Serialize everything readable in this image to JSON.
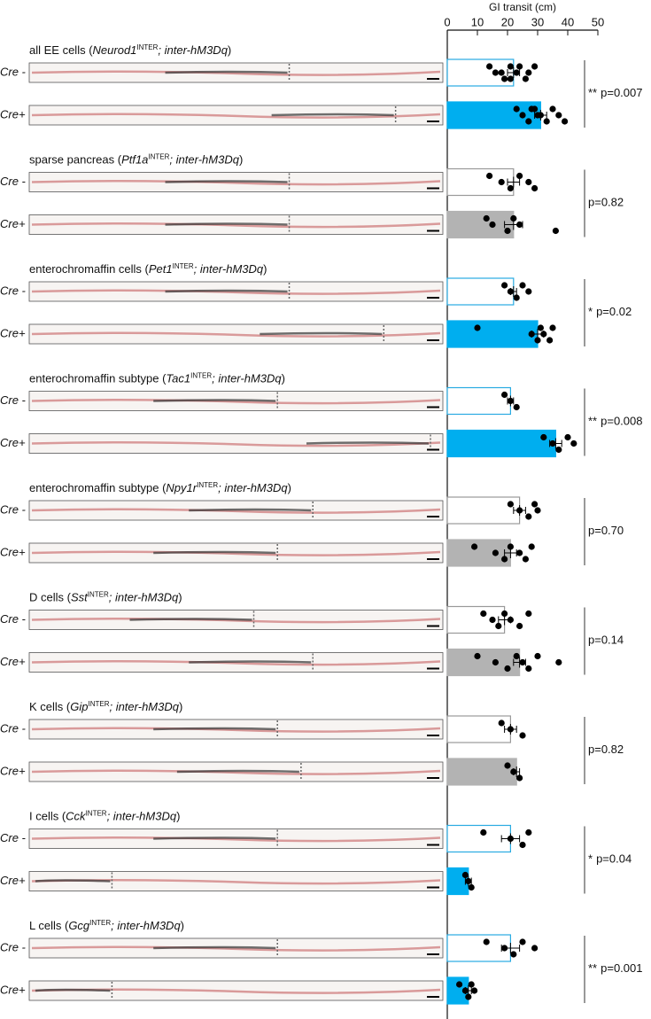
{
  "chart_data": {
    "type": "bar",
    "orientation": "horizontal",
    "x_label": "GI transit (cm)",
    "xlim": [
      0,
      50
    ],
    "xticks": [
      0,
      10,
      20,
      30,
      40,
      50
    ],
    "groups": [
      {
        "title": [
          {
            "text": "all EE cells ("
          },
          {
            "text": "Neurod1",
            "style": "i"
          },
          {
            "text": "INTER",
            "style": "sup"
          },
          {
            "text": "; inter-hM3Dq",
            "style": "i"
          },
          {
            "text": ")"
          }
        ],
        "stars": "**",
        "p": "p=0.007",
        "rows": [
          {
            "name": "Cre -",
            "value": 22,
            "error": 2,
            "fill": "#ffffff",
            "stroke": "#29abe2",
            "points": [
              14,
              18,
              19,
              21,
              23,
              26,
              29,
              16,
              21,
              24,
              27
            ]
          },
          {
            "name": "Cre+",
            "value": 31,
            "error": 2,
            "fill": "#00aeef",
            "stroke": "#00aeef",
            "points": [
              23,
              25,
              27,
              29,
              31,
              33,
              35,
              37,
              39,
              28,
              30
            ]
          }
        ]
      },
      {
        "title": [
          {
            "text": "sparse pancreas ("
          },
          {
            "text": "Ptf1a",
            "style": "i"
          },
          {
            "text": "INTER",
            "style": "sup"
          },
          {
            "text": "; inter-hM3Dq",
            "style": "i"
          },
          {
            "text": ")"
          }
        ],
        "stars": "",
        "p": "p=0.82",
        "rows": [
          {
            "name": "Cre -",
            "value": 22,
            "error": 2,
            "fill": "#ffffff",
            "stroke": "#999999",
            "points": [
              14,
              18,
              21,
              24,
              27,
              29
            ]
          },
          {
            "name": "Cre+",
            "value": 22,
            "error": 3,
            "fill": "#b3b3b3",
            "stroke": "#b3b3b3",
            "points": [
              13,
              15,
              20,
              22,
              24,
              36
            ]
          }
        ]
      },
      {
        "title": [
          {
            "text": "enterochromaffin cells ("
          },
          {
            "text": "Pet1",
            "style": "i"
          },
          {
            "text": "INTER",
            "style": "sup"
          },
          {
            "text": "; inter-hM3Dq",
            "style": "i"
          },
          {
            "text": ")"
          }
        ],
        "stars": "*",
        "p": "p=0.02",
        "rows": [
          {
            "name": "Cre -",
            "value": 22,
            "error": 1,
            "fill": "#ffffff",
            "stroke": "#29abe2",
            "points": [
              19,
              21,
              23,
              25,
              27
            ]
          },
          {
            "name": "Cre+",
            "value": 30,
            "error": 2,
            "fill": "#00aeef",
            "stroke": "#00aeef",
            "points": [
              10,
              28,
              30,
              31,
              32,
              34,
              35
            ]
          }
        ]
      },
      {
        "title": [
          {
            "text": "enterochromaffin subtype ("
          },
          {
            "text": "Tac1",
            "style": "i"
          },
          {
            "text": "INTER",
            "style": "sup"
          },
          {
            "text": "; inter-hM3Dq",
            "style": "i"
          },
          {
            "text": ")"
          }
        ],
        "stars": "**",
        "p": "p=0.008",
        "rows": [
          {
            "name": "Cre -",
            "value": 21,
            "error": 1,
            "fill": "#ffffff",
            "stroke": "#29abe2",
            "points": [
              19,
              21,
              23
            ]
          },
          {
            "name": "Cre+",
            "value": 36,
            "error": 2,
            "fill": "#00aeef",
            "stroke": "#00aeef",
            "points": [
              32,
              35,
              37,
              40,
              42
            ]
          }
        ]
      },
      {
        "title": [
          {
            "text": "enterochromaffin subtype ("
          },
          {
            "text": "Npy1r",
            "style": "i"
          },
          {
            "text": "INTER",
            "style": "sup"
          },
          {
            "text": "; inter-hM3Dq",
            "style": "i"
          },
          {
            "text": ")"
          }
        ],
        "stars": "",
        "p": "p=0.70",
        "rows": [
          {
            "name": "Cre -",
            "value": 24,
            "error": 2,
            "fill": "#ffffff",
            "stroke": "#999999",
            "points": [
              21,
              24,
              27,
              29,
              30
            ]
          },
          {
            "name": "Cre+",
            "value": 21,
            "error": 2,
            "fill": "#b3b3b3",
            "stroke": "#b3b3b3",
            "points": [
              9,
              16,
              19,
              21,
              24,
              26,
              28
            ]
          }
        ]
      },
      {
        "title": [
          {
            "text": "D cells ("
          },
          {
            "text": "Sst",
            "style": "i"
          },
          {
            "text": "INTER",
            "style": "sup"
          },
          {
            "text": "; inter-hM3Dq",
            "style": "i"
          },
          {
            "text": ")"
          }
        ],
        "stars": "",
        "p": "p=0.14",
        "rows": [
          {
            "name": "Cre -",
            "value": 19,
            "error": 2,
            "fill": "#ffffff",
            "stroke": "#999999",
            "points": [
              12,
              15,
              17,
              19,
              21,
              24,
              27
            ]
          },
          {
            "name": "Cre+",
            "value": 24,
            "error": 2,
            "fill": "#b3b3b3",
            "stroke": "#b3b3b3",
            "points": [
              10,
              16,
              20,
              23,
              25,
              27,
              30,
              37
            ]
          }
        ]
      },
      {
        "title": [
          {
            "text": "K cells ("
          },
          {
            "text": "Gip",
            "style": "i"
          },
          {
            "text": "INTER",
            "style": "sup"
          },
          {
            "text": "; inter-hM3Dq",
            "style": "i"
          },
          {
            "text": ")"
          }
        ],
        "stars": "",
        "p": "p=0.82",
        "rows": [
          {
            "name": "Cre -",
            "value": 21,
            "error": 2,
            "fill": "#ffffff",
            "stroke": "#999999",
            "points": [
              18,
              21,
              25
            ]
          },
          {
            "name": "Cre+",
            "value": 23,
            "error": 1,
            "fill": "#b3b3b3",
            "stroke": "#b3b3b3",
            "points": [
              20,
              22,
              24
            ]
          }
        ]
      },
      {
        "title": [
          {
            "text": "I cells ("
          },
          {
            "text": "Cck",
            "style": "i"
          },
          {
            "text": "INTER",
            "style": "sup"
          },
          {
            "text": "; inter-hM3Dq",
            "style": "i"
          },
          {
            "text": ")"
          }
        ],
        "stars": "*",
        "p": "p=0.04",
        "rows": [
          {
            "name": "Cre -",
            "value": 21,
            "error": 3,
            "fill": "#ffffff",
            "stroke": "#29abe2",
            "points": [
              12,
              21,
              25,
              27
            ]
          },
          {
            "name": "Cre+",
            "value": 7,
            "error": 1,
            "fill": "#00aeef",
            "stroke": "#00aeef",
            "points": [
              6,
              7,
              8
            ]
          }
        ]
      },
      {
        "title": [
          {
            "text": "L cells ("
          },
          {
            "text": "Gcg",
            "style": "i"
          },
          {
            "text": "INTER",
            "style": "sup"
          },
          {
            "text": "; inter-hM3Dq",
            "style": "i"
          },
          {
            "text": ")"
          }
        ],
        "stars": "**",
        "p": "p=0.001",
        "rows": [
          {
            "name": "Cre -",
            "value": 21,
            "error": 3,
            "fill": "#ffffff",
            "stroke": "#29abe2",
            "points": [
              13,
              19,
              22,
              25,
              29
            ]
          },
          {
            "name": "Cre+",
            "value": 7,
            "error": 1,
            "fill": "#00aeef",
            "stroke": "#00aeef",
            "points": [
              4,
              6,
              7,
              8,
              9
            ]
          }
        ]
      }
    ]
  }
}
